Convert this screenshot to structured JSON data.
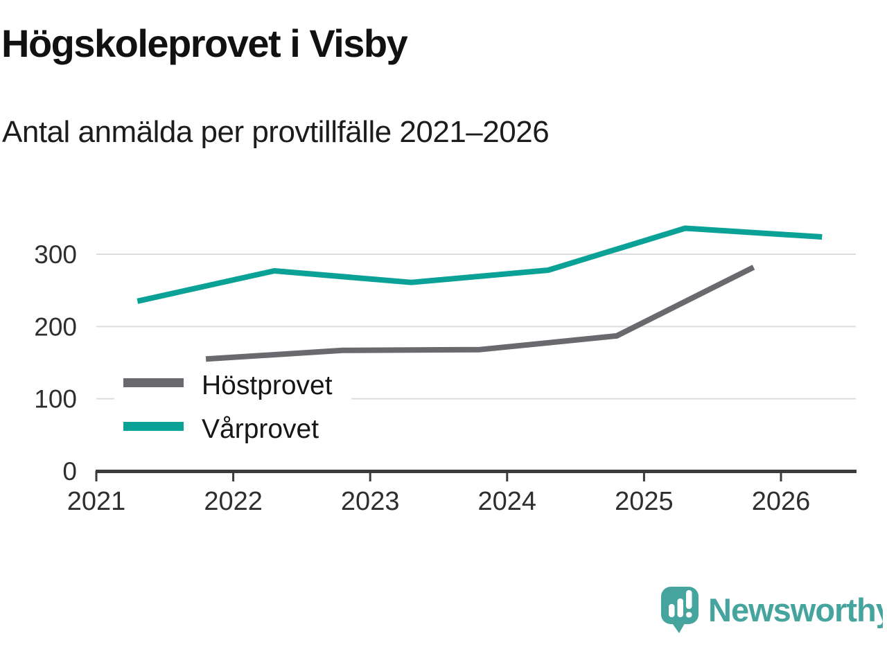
{
  "header": {
    "title": "Högskoleprovet i Visby",
    "subtitle": "Antal anmälda per provtillfälle 2021–2026"
  },
  "chart_data": {
    "type": "line",
    "title": "Högskoleprovet i Visby",
    "subtitle": "Antal anmälda per provtillfälle 2021–2026",
    "x_axis": {
      "ticks": [
        2021,
        2022,
        2023,
        2024,
        2025,
        2026
      ],
      "tick_labels": [
        "2021",
        "2022",
        "2023",
        "2024",
        "2025",
        "2026"
      ],
      "range": [
        2021,
        2026.55
      ]
    },
    "y_axis": {
      "ticks": [
        0,
        100,
        200,
        300
      ],
      "tick_labels": [
        "0",
        "100",
        "200",
        "300"
      ],
      "range": [
        0,
        345
      ],
      "grid": true,
      "grid_color": "#dcdcdc"
    },
    "legend_position": "inside-left",
    "series": [
      {
        "name": "Höstprovet",
        "color": "#6a6a6e",
        "points": [
          {
            "x": 2021.8,
            "year": 2021,
            "value": 155
          },
          {
            "x": 2022.8,
            "year": 2022,
            "value": 167
          },
          {
            "x": 2023.8,
            "year": 2023,
            "value": 168
          },
          {
            "x": 2024.8,
            "year": 2024,
            "value": 187
          },
          {
            "x": 2025.8,
            "year": 2025,
            "value": 282
          }
        ]
      },
      {
        "name": "Vårprovet",
        "color": "#0aa296",
        "points": [
          {
            "x": 2021.3,
            "year": 2021,
            "value": 235
          },
          {
            "x": 2022.3,
            "year": 2022,
            "value": 277
          },
          {
            "x": 2023.3,
            "year": 2023,
            "value": 261
          },
          {
            "x": 2024.3,
            "year": 2024,
            "value": 278
          },
          {
            "x": 2025.3,
            "year": 2025,
            "value": 336
          },
          {
            "x": 2026.3,
            "year": 2026,
            "value": 324
          }
        ]
      }
    ],
    "axis_color": "#3b3b3b"
  },
  "footer": {
    "brand": "Newsworthy",
    "brand_color": "#45a49d",
    "logo_icon": "speech-bubble-bar-chart-icon"
  }
}
